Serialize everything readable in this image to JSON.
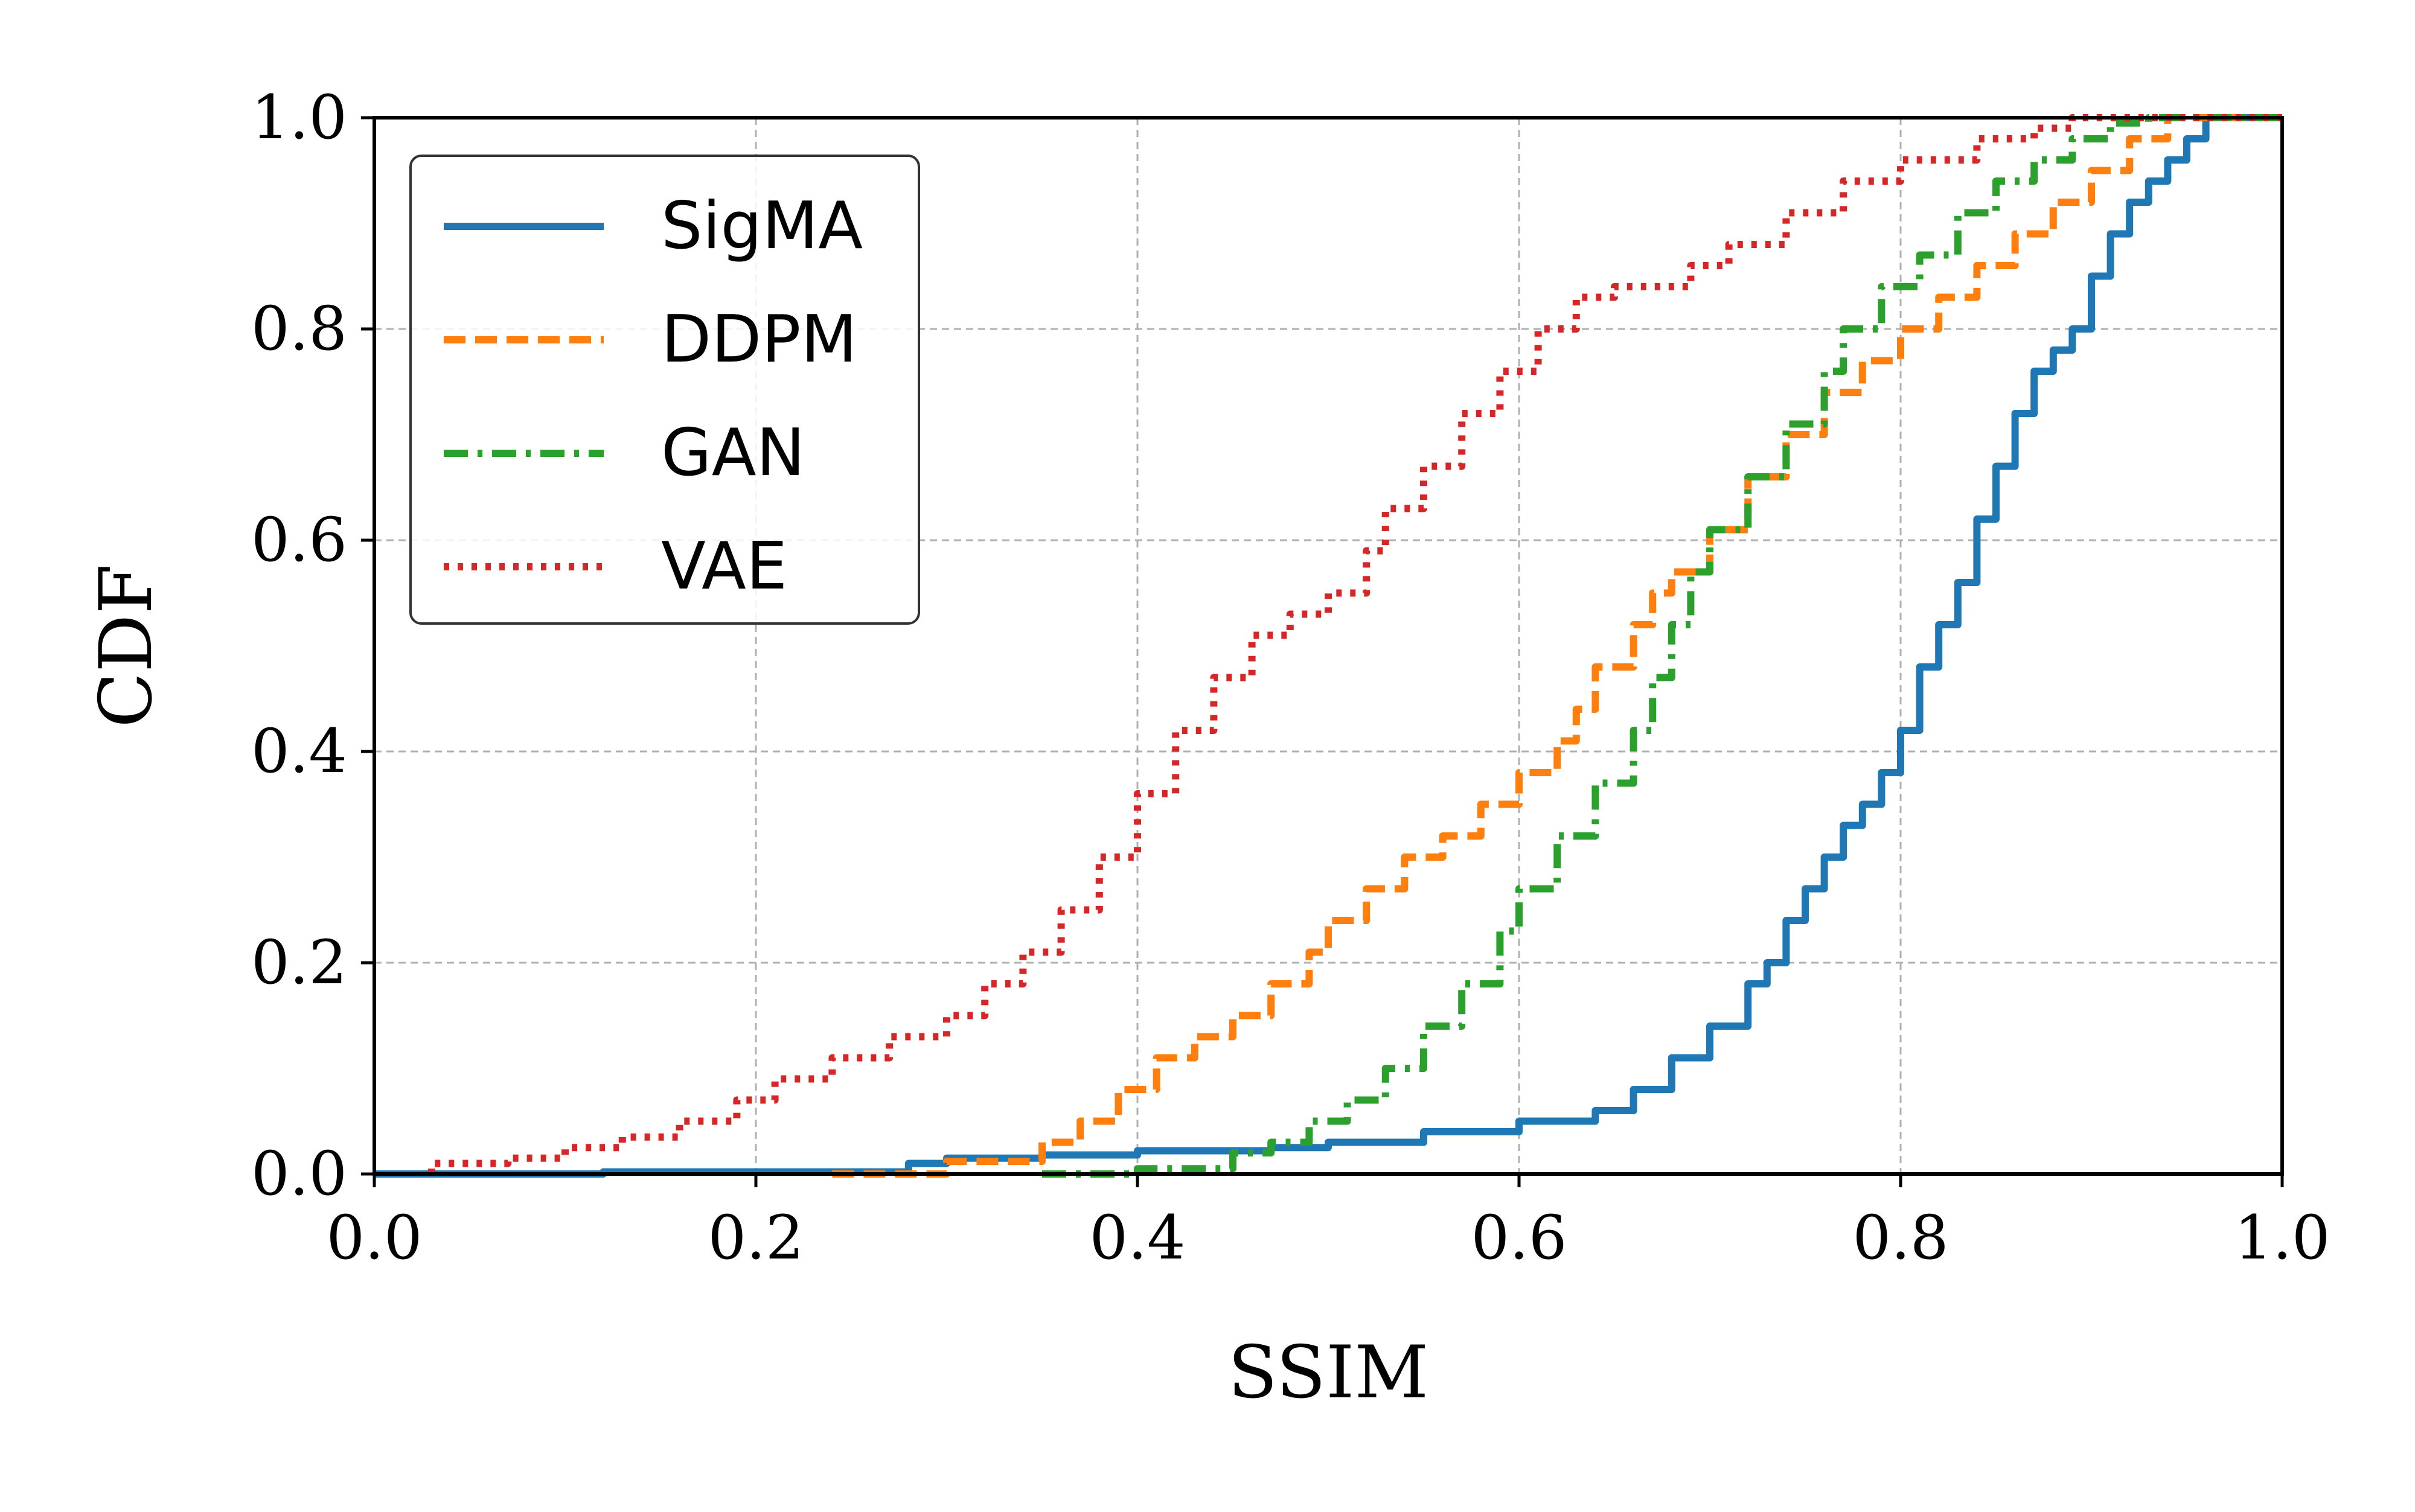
{
  "chart_data": {
    "type": "line",
    "title": "",
    "xlabel": "SSIM",
    "ylabel": "CDF",
    "xlim": [
      0.0,
      1.0
    ],
    "ylim": [
      0.0,
      1.0
    ],
    "xticks": [
      0.0,
      0.2,
      0.4,
      0.6,
      0.8,
      1.0
    ],
    "yticks": [
      0.0,
      0.2,
      0.4,
      0.6,
      0.8,
      1.0
    ],
    "xtick_labels": [
      "0.0",
      "0.2",
      "0.4",
      "0.6",
      "0.8",
      "1.0"
    ],
    "ytick_labels": [
      "0.0",
      "0.2",
      "0.4",
      "0.6",
      "0.8",
      "1.0"
    ],
    "grid": true,
    "legend_position": "top-left",
    "series": [
      {
        "name": "SigMA",
        "color": "#1f77b4",
        "style": "solid",
        "points": [
          [
            0.0,
            0.0
          ],
          [
            0.12,
            0.002
          ],
          [
            0.28,
            0.01
          ],
          [
            0.3,
            0.015
          ],
          [
            0.35,
            0.018
          ],
          [
            0.4,
            0.022
          ],
          [
            0.47,
            0.025
          ],
          [
            0.5,
            0.03
          ],
          [
            0.55,
            0.04
          ],
          [
            0.6,
            0.05
          ],
          [
            0.64,
            0.06
          ],
          [
            0.66,
            0.08
          ],
          [
            0.68,
            0.11
          ],
          [
            0.7,
            0.14
          ],
          [
            0.72,
            0.18
          ],
          [
            0.73,
            0.2
          ],
          [
            0.74,
            0.24
          ],
          [
            0.75,
            0.27
          ],
          [
            0.76,
            0.3
          ],
          [
            0.77,
            0.33
          ],
          [
            0.78,
            0.35
          ],
          [
            0.79,
            0.38
          ],
          [
            0.8,
            0.42
          ],
          [
            0.81,
            0.48
          ],
          [
            0.82,
            0.52
          ],
          [
            0.83,
            0.56
          ],
          [
            0.84,
            0.62
          ],
          [
            0.85,
            0.67
          ],
          [
            0.86,
            0.72
          ],
          [
            0.87,
            0.76
          ],
          [
            0.88,
            0.78
          ],
          [
            0.89,
            0.8
          ],
          [
            0.9,
            0.85
          ],
          [
            0.91,
            0.89
          ],
          [
            0.92,
            0.92
          ],
          [
            0.93,
            0.94
          ],
          [
            0.94,
            0.96
          ],
          [
            0.95,
            0.98
          ],
          [
            0.96,
            1.0
          ],
          [
            1.0,
            1.0
          ]
        ]
      },
      {
        "name": "DDPM",
        "color": "#ff7f0e",
        "style": "dashed",
        "points": [
          [
            0.24,
            0.0
          ],
          [
            0.3,
            0.012
          ],
          [
            0.35,
            0.03
          ],
          [
            0.37,
            0.05
          ],
          [
            0.39,
            0.08
          ],
          [
            0.41,
            0.11
          ],
          [
            0.43,
            0.13
          ],
          [
            0.45,
            0.15
          ],
          [
            0.47,
            0.18
          ],
          [
            0.49,
            0.21
          ],
          [
            0.5,
            0.24
          ],
          [
            0.52,
            0.27
          ],
          [
            0.54,
            0.3
          ],
          [
            0.56,
            0.32
          ],
          [
            0.58,
            0.35
          ],
          [
            0.6,
            0.38
          ],
          [
            0.62,
            0.41
          ],
          [
            0.63,
            0.44
          ],
          [
            0.64,
            0.48
          ],
          [
            0.66,
            0.52
          ],
          [
            0.67,
            0.55
          ],
          [
            0.68,
            0.57
          ],
          [
            0.7,
            0.61
          ],
          [
            0.72,
            0.66
          ],
          [
            0.74,
            0.7
          ],
          [
            0.76,
            0.74
          ],
          [
            0.78,
            0.77
          ],
          [
            0.8,
            0.8
          ],
          [
            0.82,
            0.83
          ],
          [
            0.84,
            0.86
          ],
          [
            0.86,
            0.89
          ],
          [
            0.88,
            0.92
          ],
          [
            0.9,
            0.95
          ],
          [
            0.92,
            0.98
          ],
          [
            0.94,
            1.0
          ],
          [
            1.0,
            1.0
          ]
        ]
      },
      {
        "name": "GAN",
        "color": "#2ca02c",
        "style": "dashdot",
        "points": [
          [
            0.35,
            0.0
          ],
          [
            0.4,
            0.005
          ],
          [
            0.45,
            0.02
          ],
          [
            0.47,
            0.03
          ],
          [
            0.49,
            0.05
          ],
          [
            0.51,
            0.07
          ],
          [
            0.53,
            0.1
          ],
          [
            0.55,
            0.14
          ],
          [
            0.57,
            0.18
          ],
          [
            0.59,
            0.23
          ],
          [
            0.6,
            0.27
          ],
          [
            0.62,
            0.32
          ],
          [
            0.64,
            0.37
          ],
          [
            0.66,
            0.42
          ],
          [
            0.67,
            0.47
          ],
          [
            0.68,
            0.52
          ],
          [
            0.69,
            0.57
          ],
          [
            0.7,
            0.61
          ],
          [
            0.72,
            0.66
          ],
          [
            0.74,
            0.71
          ],
          [
            0.76,
            0.76
          ],
          [
            0.77,
            0.8
          ],
          [
            0.79,
            0.84
          ],
          [
            0.81,
            0.87
          ],
          [
            0.83,
            0.91
          ],
          [
            0.85,
            0.94
          ],
          [
            0.87,
            0.96
          ],
          [
            0.89,
            0.98
          ],
          [
            0.91,
            0.995
          ],
          [
            0.93,
            1.0
          ],
          [
            1.0,
            1.0
          ]
        ]
      },
      {
        "name": "VAE",
        "color": "#d62728",
        "style": "dotted",
        "points": [
          [
            0.03,
            0.0
          ],
          [
            0.03,
            0.01
          ],
          [
            0.07,
            0.015
          ],
          [
            0.1,
            0.025
          ],
          [
            0.13,
            0.035
          ],
          [
            0.16,
            0.05
          ],
          [
            0.19,
            0.07
          ],
          [
            0.21,
            0.09
          ],
          [
            0.24,
            0.11
          ],
          [
            0.27,
            0.13
          ],
          [
            0.3,
            0.15
          ],
          [
            0.32,
            0.18
          ],
          [
            0.34,
            0.21
          ],
          [
            0.36,
            0.25
          ],
          [
            0.38,
            0.3
          ],
          [
            0.4,
            0.36
          ],
          [
            0.42,
            0.42
          ],
          [
            0.44,
            0.47
          ],
          [
            0.46,
            0.51
          ],
          [
            0.48,
            0.53
          ],
          [
            0.5,
            0.55
          ],
          [
            0.52,
            0.59
          ],
          [
            0.53,
            0.63
          ],
          [
            0.55,
            0.67
          ],
          [
            0.57,
            0.72
          ],
          [
            0.59,
            0.76
          ],
          [
            0.61,
            0.8
          ],
          [
            0.63,
            0.83
          ],
          [
            0.65,
            0.84
          ],
          [
            0.69,
            0.86
          ],
          [
            0.71,
            0.88
          ],
          [
            0.74,
            0.91
          ],
          [
            0.77,
            0.94
          ],
          [
            0.8,
            0.96
          ],
          [
            0.84,
            0.98
          ],
          [
            0.87,
            0.99
          ],
          [
            0.89,
            1.0
          ],
          [
            1.0,
            1.0
          ]
        ]
      }
    ]
  }
}
